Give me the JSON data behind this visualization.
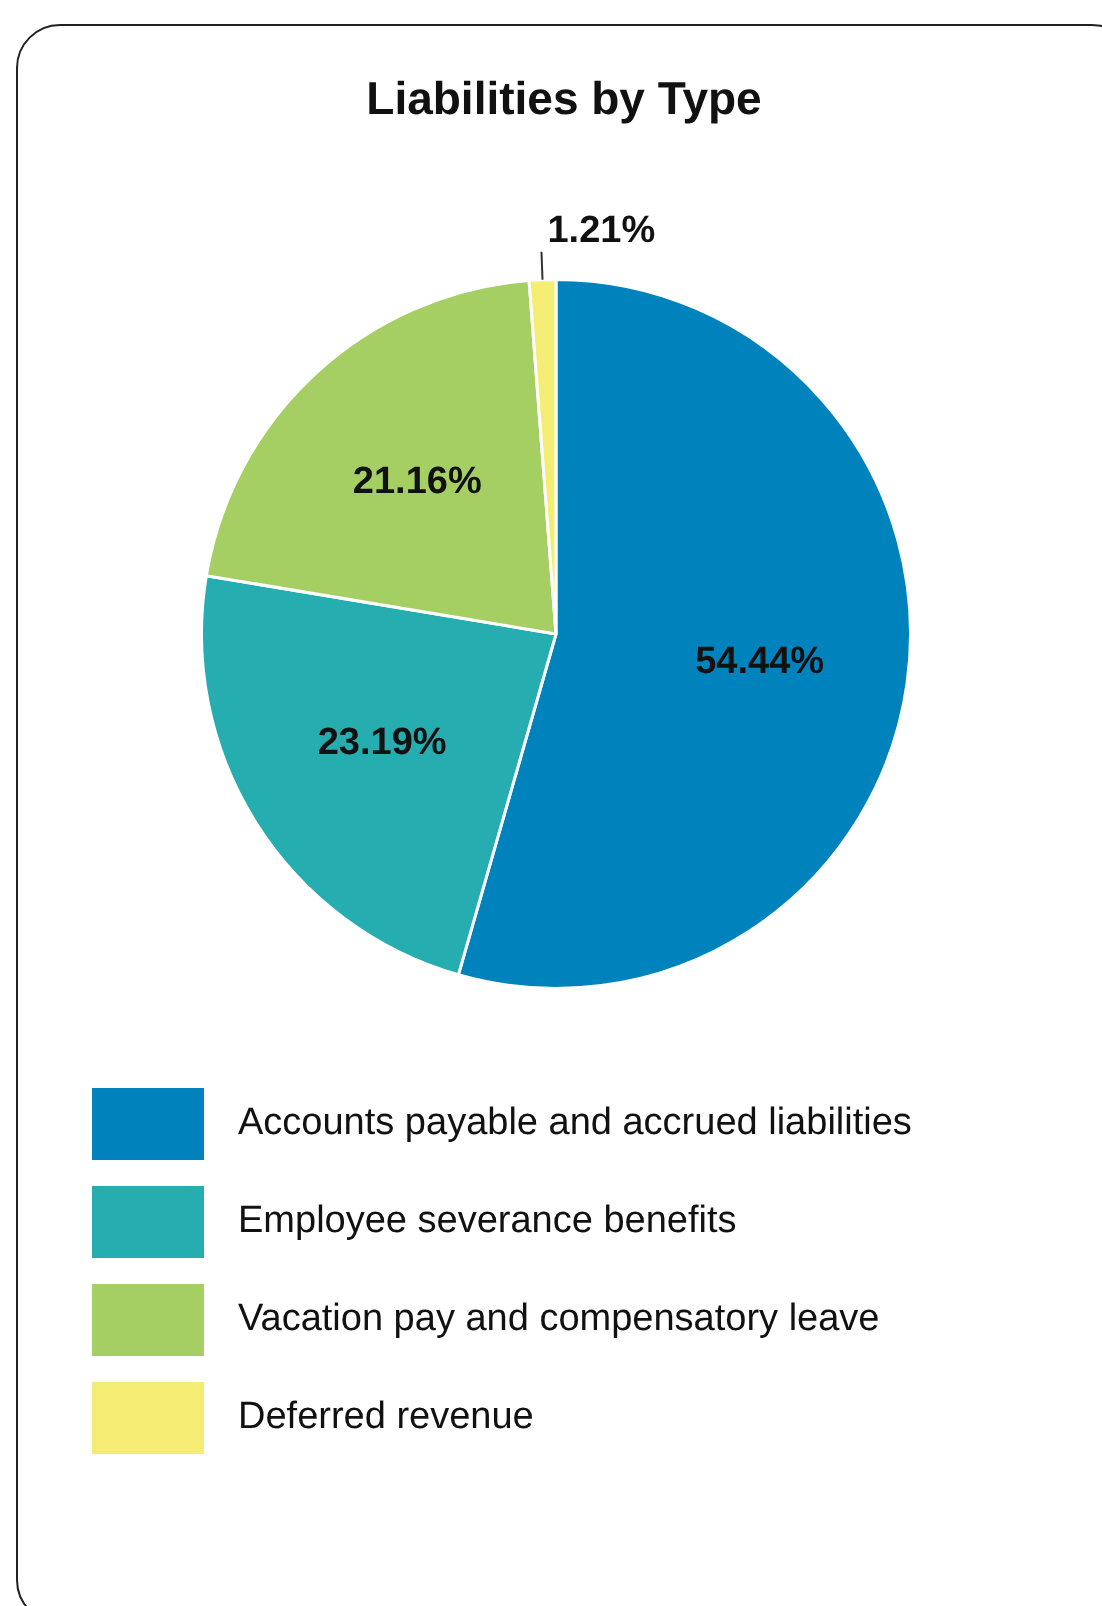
{
  "chart_data": {
    "type": "pie",
    "title": "Liabilities by Type",
    "categories": [
      "Accounts payable and accrued liabilities",
      "Employee severance benefits",
      "Vacation pay and compensatory leave",
      "Deferred revenue"
    ],
    "values": [
      54.44,
      23.19,
      21.16,
      1.21
    ],
    "colors": [
      "#0083bd",
      "#25adb0",
      "#a5cf63",
      "#f5ed73"
    ],
    "value_labels": [
      "54.44%",
      "23.19%",
      "21.16%",
      "1.21%"
    ],
    "legend": "bottom"
  }
}
